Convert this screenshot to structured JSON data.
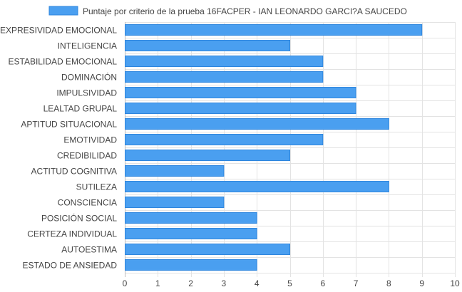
{
  "chart_data": {
    "type": "bar",
    "orientation": "horizontal",
    "categories": [
      "EXPRESIVIDAD EMOCIONAL",
      "INTELIGENCIA",
      "ESTABILIDAD EMOCIONAL",
      "DOMINACIÓN",
      "IMPULSIVIDAD",
      "LEALTAD GRUPAL",
      "APTITUD SITUACIONAL",
      "EMOTIVIDAD",
      "CREDIBILIDAD",
      "ACTITUD COGNITIVA",
      "SUTILEZA",
      "CONSCIENCIA",
      "POSICIÓN SOCIAL",
      "CERTEZA INDIVIDUAL",
      "AUTOESTIMA",
      "ESTADO DE ANSIEDAD"
    ],
    "series": [
      {
        "name": "Puntaje por criterio de la prueba 16FACPER - IAN LEONARDO GARCI?A SAUCEDO",
        "values": [
          9,
          5,
          6,
          6,
          7,
          7,
          8,
          6,
          5,
          3,
          8,
          3,
          4,
          4,
          5,
          4
        ],
        "color": "#4a9ff0",
        "border_color": "#2e86de"
      }
    ],
    "xlim": [
      0,
      10
    ],
    "x_ticks": [
      0,
      1,
      2,
      3,
      4,
      5,
      6,
      7,
      8,
      9,
      10
    ],
    "grid": true,
    "legend_position": "top"
  }
}
